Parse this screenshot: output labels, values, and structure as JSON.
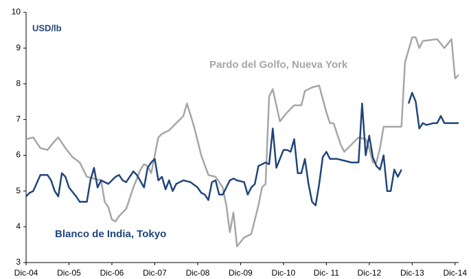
{
  "chart_data": {
    "type": "line",
    "y_label": "USD/lb",
    "xlim": [
      0,
      121
    ],
    "xticks": [
      {
        "value": 0,
        "label": "Dic-04"
      },
      {
        "value": 12,
        "label": "Dic-05"
      },
      {
        "value": 24,
        "label": "Dic-06"
      },
      {
        "value": 36,
        "label": "Dic-07"
      },
      {
        "value": 48,
        "label": "Dic-08"
      },
      {
        "value": 60,
        "label": "Dic-09"
      },
      {
        "value": 72,
        "label": "Dic-10"
      },
      {
        "value": 84,
        "label": "Dic- 11"
      },
      {
        "value": 96,
        "label": "Dic-12"
      },
      {
        "value": 108,
        "label": "Dic-13"
      },
      {
        "value": 120,
        "label": "Dic-14"
      }
    ],
    "ylim": [
      3,
      10
    ],
    "yticks": [
      3,
      4,
      5,
      6,
      7,
      8,
      9,
      10
    ],
    "grid": false,
    "series": [
      {
        "name": "Pardo del Golfo, Nueva York",
        "color": "#a6a6a6",
        "x": [
          0,
          2,
          4,
          6,
          8,
          9,
          11,
          13,
          15,
          17,
          19,
          21,
          22,
          23,
          24,
          25,
          26,
          28,
          30,
          32,
          33,
          34,
          35,
          36,
          37,
          38,
          40,
          42,
          44,
          45,
          47,
          49,
          51,
          53,
          55,
          56,
          57,
          58,
          59,
          61,
          63,
          65,
          66,
          67,
          68,
          69,
          71,
          73,
          75,
          77,
          78,
          80,
          82,
          84,
          85,
          86,
          88,
          89,
          91,
          93,
          95,
          96,
          97,
          98,
          99,
          100,
          105,
          106,
          107,
          108,
          109,
          110,
          111,
          115,
          117,
          119,
          120,
          121
        ],
        "values": [
          6.45,
          6.5,
          6.2,
          6.15,
          6.4,
          6.5,
          6.2,
          5.95,
          5.8,
          5.4,
          5.35,
          5.3,
          4.7,
          4.55,
          4.2,
          4.15,
          4.3,
          4.5,
          5.1,
          5.6,
          5.75,
          5.7,
          5.5,
          6.0,
          6.5,
          6.6,
          6.7,
          6.9,
          7.1,
          7.45,
          6.8,
          6.0,
          5.45,
          5.4,
          5.1,
          4.6,
          3.85,
          4.4,
          3.45,
          3.7,
          3.8,
          4.6,
          5.1,
          5.2,
          7.65,
          7.85,
          6.95,
          7.2,
          7.4,
          7.4,
          7.8,
          7.9,
          7.95,
          7.2,
          6.9,
          6.9,
          6.3,
          6.1,
          6.3,
          6.5,
          6.45,
          6.2,
          5.8,
          5.8,
          6.2,
          6.8,
          6.8,
          8.6,
          8.95,
          9.3,
          9.3,
          9.0,
          9.2,
          9.25,
          9.0,
          9.25,
          8.15,
          8.25
        ]
      },
      {
        "name": "Blanco de India, Tokyo",
        "color": "#21457a",
        "x": [
          0,
          1,
          2,
          4,
          6,
          7,
          8,
          9,
          10,
          11,
          12,
          14,
          15,
          17,
          18,
          19,
          20,
          21,
          23,
          25,
          26,
          27,
          28,
          30,
          31,
          33,
          34,
          35,
          36,
          37,
          38,
          39,
          40,
          41,
          42,
          44,
          46,
          48,
          49,
          50,
          51,
          52,
          53,
          54,
          55,
          56,
          57,
          58,
          59,
          61,
          62,
          63,
          64,
          65,
          66,
          67,
          68,
          69,
          70,
          71,
          72,
          73,
          74,
          75,
          76,
          77,
          78,
          79,
          80,
          81,
          82,
          83,
          84,
          85,
          87,
          89,
          91,
          93,
          94,
          95,
          96,
          97,
          98,
          99,
          100,
          101,
          102,
          103,
          104,
          105,
          106,
          107,
          108,
          109,
          110,
          111,
          112,
          114,
          115,
          116,
          117,
          119,
          121
        ],
        "values": [
          4.85,
          4.95,
          5.0,
          5.45,
          5.45,
          5.3,
          5.0,
          4.85,
          5.5,
          5.4,
          5.1,
          4.85,
          4.7,
          4.7,
          5.3,
          5.65,
          5.1,
          5.3,
          5.2,
          5.4,
          5.45,
          5.3,
          5.25,
          5.55,
          5.45,
          5.1,
          5.65,
          5.8,
          5.9,
          5.3,
          5.4,
          5.05,
          5.3,
          5.0,
          5.2,
          5.3,
          5.25,
          5.1,
          4.95,
          4.9,
          4.75,
          5.25,
          5.3,
          4.9,
          4.9,
          5.1,
          5.3,
          5.35,
          5.3,
          5.25,
          4.9,
          5.1,
          5.2,
          5.7,
          5.75,
          5.8,
          5.75,
          6.75,
          5.65,
          5.9,
          6.15,
          6.15,
          6.1,
          6.45,
          5.5,
          5.5,
          5.9,
          5.2,
          4.7,
          4.6,
          5.2,
          5.95,
          6.1,
          5.9,
          5.9,
          5.85,
          5.8,
          5.8,
          7.45,
          6.0,
          6.55,
          5.95,
          5.7,
          5.6,
          6.0,
          5.0,
          5.0,
          5.6,
          5.4,
          5.6,
          null,
          7.45,
          7.75,
          7.5,
          6.75,
          6.9,
          6.85,
          6.9,
          6.9,
          7.1,
          6.9,
          6.9,
          6.9
        ]
      }
    ]
  }
}
